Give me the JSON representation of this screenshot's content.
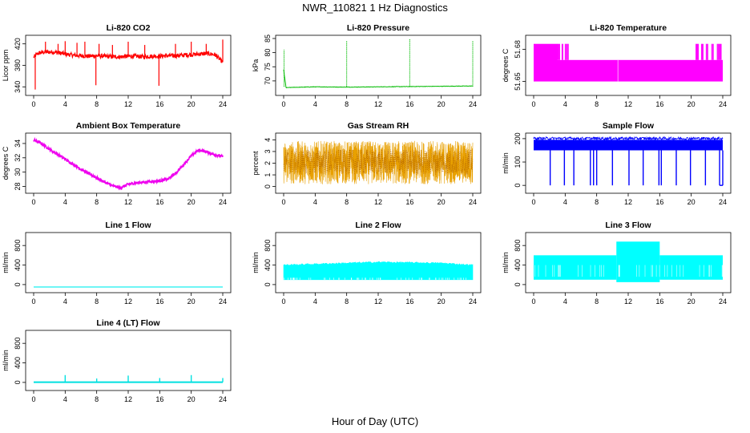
{
  "title": "NWR_110821  1 Hz Diagnostics",
  "xlabel": "Hour of Day (UTC)",
  "chart_data": [
    {
      "type": "line",
      "title": "Li-820 CO2",
      "ylabel": "Licor ppm",
      "color": "#ff0000",
      "xlim": [
        0,
        24
      ],
      "ylim": [
        330,
        430
      ],
      "yticks": [
        "340",
        "380",
        "420"
      ],
      "ytick_values": [
        340,
        380,
        420
      ],
      "xticks": [
        "0",
        "4",
        "8",
        "12",
        "16",
        "20",
        "24"
      ],
      "x": [
        0,
        0.5,
        1,
        2,
        3,
        4,
        5,
        6,
        7,
        8,
        9,
        10,
        11,
        12,
        13,
        14,
        15,
        16,
        17,
        18,
        19,
        20,
        21,
        22,
        23,
        24
      ],
      "y": [
        395,
        402,
        404,
        405,
        404,
        401,
        399,
        398,
        397,
        398,
        397,
        396,
        396,
        397,
        397,
        396,
        397,
        397,
        398,
        398,
        399,
        400,
        401,
        402,
        400,
        386
      ],
      "spikes": [
        {
          "x": 0.2,
          "y": 335
        },
        {
          "x": 1.5,
          "y": 424
        },
        {
          "x": 3.1,
          "y": 420
        },
        {
          "x": 4.0,
          "y": 425
        },
        {
          "x": 5.5,
          "y": 422
        },
        {
          "x": 6.5,
          "y": 424
        },
        {
          "x": 7.9,
          "y": 343
        },
        {
          "x": 8.3,
          "y": 420
        },
        {
          "x": 10.0,
          "y": 418
        },
        {
          "x": 12.0,
          "y": 424
        },
        {
          "x": 14.1,
          "y": 418
        },
        {
          "x": 15.9,
          "y": 342
        },
        {
          "x": 18.0,
          "y": 420
        },
        {
          "x": 20.0,
          "y": 424
        },
        {
          "x": 21.9,
          "y": 420
        },
        {
          "x": 24.0,
          "y": 428
        }
      ]
    },
    {
      "type": "line",
      "title": "Li-820 Pressure",
      "ylabel": "kPa",
      "color": "#00bb00",
      "xlim": [
        0,
        24
      ],
      "ylim": [
        66,
        85
      ],
      "yticks": [
        "70",
        "75",
        "80",
        "85"
      ],
      "ytick_values": [
        70,
        75,
        80,
        85
      ],
      "xticks": [
        "0",
        "4",
        "8",
        "12",
        "16",
        "20",
        "24"
      ],
      "x": [
        0,
        0.3,
        1,
        4,
        8,
        12,
        16,
        20,
        24
      ],
      "y": [
        74,
        67.6,
        67.7,
        67.9,
        67.8,
        67.9,
        68.0,
        68.1,
        68.2
      ],
      "spikes": [
        {
          "x": 0.05,
          "y": 81
        },
        {
          "x": 8.0,
          "y": 84
        },
        {
          "x": 16.0,
          "y": 85
        },
        {
          "x": 24.0,
          "y": 84
        }
      ]
    },
    {
      "type": "line",
      "title": "Li-820 Temperature",
      "ylabel": "degrees C",
      "color": "#ff00ff",
      "xlim": [
        0,
        24
      ],
      "ylim": [
        51.64,
        51.69
      ],
      "yticks": [
        "51.65",
        "51.68"
      ],
      "ytick_values": [
        51.65,
        51.68
      ],
      "xticks": [
        "0",
        "4",
        "8",
        "12",
        "16",
        "20",
        "24"
      ],
      "low": 51.65,
      "high": 51.67,
      "top": 51.685,
      "top_range": [
        0,
        3.0
      ],
      "flicker": [
        3.0,
        4.5
      ],
      "flicker_end": [
        20.6,
        23.9
      ]
    },
    {
      "type": "line",
      "title": "Ambient Box Temperature",
      "ylabel": "degrees C",
      "color": "#ee00ee",
      "xlim": [
        0,
        24
      ],
      "ylim": [
        27.5,
        35
      ],
      "yticks": [
        "28",
        "30",
        "32",
        "34"
      ],
      "ytick_values": [
        28,
        30,
        32,
        34
      ],
      "xticks": [
        "0",
        "4",
        "8",
        "12",
        "16",
        "20",
        "24"
      ],
      "x": [
        0,
        1,
        2,
        3,
        4,
        5,
        6,
        7,
        8,
        9,
        10,
        11,
        12,
        13,
        14,
        15,
        16,
        17,
        18,
        19,
        20,
        21,
        22,
        23,
        24
      ],
      "y": [
        34.5,
        34.0,
        33.2,
        32.5,
        31.8,
        31.1,
        30.4,
        29.8,
        29.2,
        28.6,
        28.1,
        27.8,
        28.3,
        28.5,
        28.6,
        28.7,
        28.8,
        29.0,
        29.8,
        31.0,
        32.3,
        33.1,
        32.8,
        32.4,
        32.2
      ]
    },
    {
      "type": "line",
      "title": "Gas Stream RH",
      "ylabel": "percent",
      "color": "#e8a000",
      "xlim": [
        0,
        24
      ],
      "ylim": [
        -0.3,
        4.3
      ],
      "yticks": [
        "0",
        "1",
        "2",
        "3",
        "4"
      ],
      "ytick_values": [
        0,
        1,
        2,
        3,
        4
      ],
      "xticks": [
        "0",
        "4",
        "8",
        "12",
        "16",
        "20",
        "24"
      ],
      "band": [
        0.2,
        3.9
      ],
      "center": 2.1
    },
    {
      "type": "line",
      "title": "Sample Flow",
      "ylabel": "ml/min",
      "color": "#0000ff",
      "xlim": [
        0,
        24
      ],
      "ylim": [
        -20,
        210
      ],
      "yticks": [
        "0",
        "100",
        "200"
      ],
      "ytick_values": [
        0,
        100,
        200
      ],
      "xticks": [
        "0",
        "4",
        "8",
        "12",
        "16",
        "20",
        "24"
      ],
      "band": [
        150,
        195
      ],
      "dips": [
        2.1,
        3.9,
        5.1,
        7.2,
        7.6,
        8.0,
        10.0,
        12.1,
        13.9,
        15.9,
        16.2,
        18.1,
        19.9,
        21.8,
        23.6,
        24.0
      ]
    },
    {
      "type": "line",
      "title": "Line 1 Flow",
      "ylabel": "ml/min",
      "color": "#00eeee",
      "xlim": [
        0,
        24
      ],
      "ylim": [
        -100,
        1000
      ],
      "yticks": [
        "0",
        "400",
        "800"
      ],
      "ytick_values": [
        0,
        400,
        800
      ],
      "xticks": [
        "0",
        "4",
        "8",
        "12",
        "16",
        "20",
        "24"
      ],
      "level": -50
    },
    {
      "type": "line",
      "title": "Line 2 Flow",
      "ylabel": "ml/min",
      "color": "#00ffff",
      "xlim": [
        0,
        24
      ],
      "ylim": [
        -100,
        1000
      ],
      "yticks": [
        "0",
        "400",
        "800"
      ],
      "ytick_values": [
        0,
        400,
        800
      ],
      "xticks": [
        "0",
        "4",
        "8",
        "12",
        "16",
        "20",
        "24"
      ],
      "band": [
        100,
        450
      ],
      "band_top": [
        [
          0,
          400
        ],
        [
          4,
          420
        ],
        [
          12,
          460
        ],
        [
          20,
          440
        ],
        [
          24,
          400
        ]
      ]
    },
    {
      "type": "line",
      "title": "Line 3 Flow",
      "ylabel": "ml/min",
      "color": "#00ffff",
      "xlim": [
        0,
        24
      ],
      "ylim": [
        -100,
        1000
      ],
      "yticks": [
        "0",
        "400",
        "800"
      ],
      "ytick_values": [
        0,
        400,
        800
      ],
      "xticks": [
        "0",
        "4",
        "8",
        "12",
        "16",
        "20",
        "24"
      ],
      "band": [
        100,
        600
      ],
      "high_range": [
        10.5,
        16.0
      ],
      "high_top": 880,
      "high_low": 50
    },
    {
      "type": "line",
      "title": "Line 4 (LT) Flow",
      "ylabel": "ml/min",
      "color": "#00e0e0",
      "xlim": [
        0,
        24
      ],
      "ylim": [
        -100,
        1000
      ],
      "yticks": [
        "0",
        "400",
        "800"
      ],
      "ytick_values": [
        0,
        400,
        800
      ],
      "xticks": [
        "0",
        "4",
        "8",
        "12",
        "16",
        "20",
        "24"
      ],
      "level": 5,
      "spikes": [
        {
          "x": 4.0,
          "y": 150
        },
        {
          "x": 8.0,
          "y": 80
        },
        {
          "x": 12.0,
          "y": 140
        },
        {
          "x": 16.0,
          "y": 90
        },
        {
          "x": 20.0,
          "y": 150
        },
        {
          "x": 24.0,
          "y": 90
        }
      ]
    }
  ]
}
